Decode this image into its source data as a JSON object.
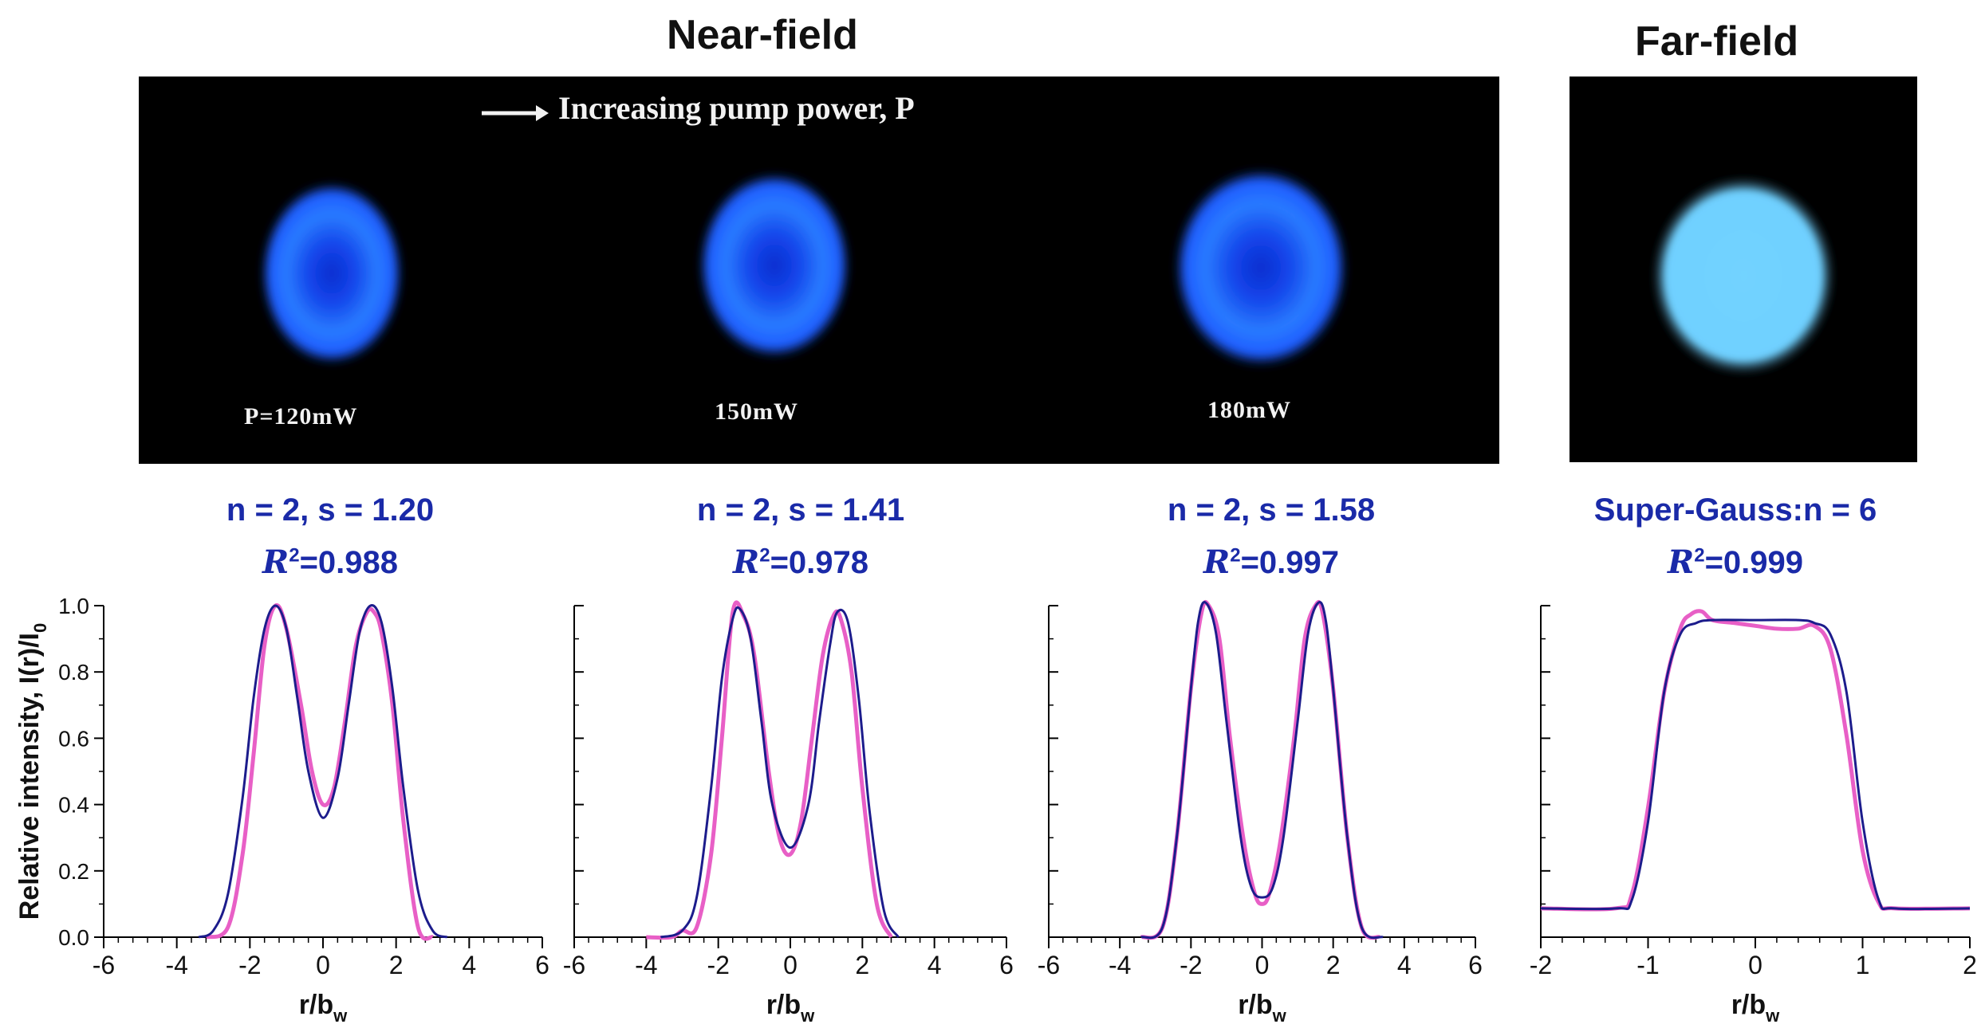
{
  "headers": {
    "near_field": "Near-field",
    "far_field": "Far-field"
  },
  "near_field_image": {
    "arrow_text": "Increasing pump power, P",
    "beam_labels": [
      "P=120mW",
      "150mW",
      "180mW"
    ],
    "beam_color": "#1e5cff"
  },
  "far_field_image": {
    "beam_color": "#6fd0ff"
  },
  "fit_labels": [
    {
      "line1": "n = 2, s = 1.20",
      "r2_symbol": "R",
      "r2_exp": "2",
      "r2_value": "=0.988"
    },
    {
      "line1": "n = 2, s = 1.41",
      "r2_symbol": "R",
      "r2_exp": "2",
      "r2_value": "=0.978"
    },
    {
      "line1": "n = 2, s = 1.58",
      "r2_symbol": "R",
      "r2_exp": "2",
      "r2_value": "=0.997"
    },
    {
      "line1": "Super-Gauss:n = 6",
      "r2_symbol": "R",
      "r2_exp": "2",
      "r2_value": "=0.999"
    }
  ],
  "colors": {
    "fit_label": "#1a2aa8",
    "measured": "#e85fc6",
    "fit": "#1c1c8c"
  },
  "chart_data": [
    {
      "type": "line",
      "xlim": [
        -6,
        6
      ],
      "ylim": [
        0,
        1.0
      ],
      "xticks": [
        "-6",
        "-4",
        "-2",
        "0",
        "2",
        "4",
        "6"
      ],
      "yticks": [
        "0.0",
        "0.2",
        "0.4",
        "0.6",
        "0.8",
        "1.0"
      ],
      "xlabel": "r/b",
      "xlabel_sub": "w",
      "ylabel": "Relative intensity, I(r)/I",
      "ylabel_sub": "0",
      "series": [
        {
          "role": "measured",
          "x": [
            -3.2,
            -2.6,
            -2.2,
            -1.9,
            -1.6,
            -1.3,
            -1.0,
            -0.6,
            -0.3,
            0,
            0.3,
            0.6,
            0.9,
            1.2,
            1.4,
            1.6,
            1.9,
            2.2,
            2.6,
            3.0
          ],
          "y": [
            0.0,
            0.03,
            0.25,
            0.55,
            0.88,
            1.0,
            0.93,
            0.7,
            0.5,
            0.4,
            0.45,
            0.65,
            0.88,
            0.98,
            0.98,
            0.92,
            0.7,
            0.35,
            0.03,
            0.0
          ]
        },
        {
          "role": "fit",
          "x": [
            -3.4,
            -3.0,
            -2.6,
            -2.2,
            -1.9,
            -1.6,
            -1.3,
            -1.0,
            -0.7,
            -0.4,
            0,
            0.4,
            0.7,
            1.0,
            1.3,
            1.6,
            1.9,
            2.2,
            2.6,
            3.0,
            3.4
          ],
          "y": [
            0.0,
            0.02,
            0.13,
            0.42,
            0.72,
            0.93,
            1.0,
            0.93,
            0.72,
            0.5,
            0.36,
            0.48,
            0.7,
            0.92,
            1.0,
            0.95,
            0.75,
            0.45,
            0.14,
            0.02,
            0.0
          ]
        }
      ]
    },
    {
      "type": "line",
      "xlim": [
        -6,
        6
      ],
      "ylim": [
        0,
        1.0
      ],
      "xticks": [
        "-6",
        "-4",
        "-2",
        "0",
        "2",
        "4",
        "6"
      ],
      "xlabel": "r/b",
      "xlabel_sub": "w",
      "series": [
        {
          "role": "measured",
          "x": [
            -4.0,
            -3.3,
            -3.0,
            -2.6,
            -2.2,
            -1.9,
            -1.6,
            -1.3,
            -1.0,
            -0.6,
            -0.3,
            0,
            0.3,
            0.6,
            0.9,
            1.2,
            1.4,
            1.7,
            2.0,
            2.4,
            2.8
          ],
          "y": [
            0.0,
            0.0,
            0.02,
            0.03,
            0.25,
            0.6,
            0.98,
            0.97,
            0.85,
            0.5,
            0.3,
            0.25,
            0.35,
            0.6,
            0.85,
            0.97,
            0.96,
            0.8,
            0.45,
            0.1,
            0.0
          ]
        },
        {
          "role": "fit",
          "x": [
            -3.6,
            -3.0,
            -2.6,
            -2.2,
            -1.9,
            -1.6,
            -1.4,
            -1.1,
            -0.8,
            -0.5,
            0,
            0.5,
            0.8,
            1.1,
            1.3,
            1.6,
            1.9,
            2.2,
            2.6,
            3.0
          ],
          "y": [
            0.0,
            0.02,
            0.12,
            0.45,
            0.78,
            0.96,
            0.99,
            0.9,
            0.65,
            0.4,
            0.27,
            0.4,
            0.65,
            0.88,
            0.98,
            0.95,
            0.72,
            0.38,
            0.08,
            0.0
          ]
        }
      ]
    },
    {
      "type": "line",
      "xlim": [
        -6,
        6
      ],
      "ylim": [
        0,
        1.0
      ],
      "xticks": [
        "-6",
        "-4",
        "-2",
        "0",
        "2",
        "4",
        "6"
      ],
      "xlabel": "r/b",
      "xlabel_sub": "w",
      "series": [
        {
          "role": "measured",
          "x": [
            -3.4,
            -2.8,
            -2.4,
            -2.0,
            -1.7,
            -1.5,
            -1.2,
            -0.9,
            -0.5,
            -0.2,
            0,
            0.2,
            0.5,
            0.9,
            1.2,
            1.5,
            1.7,
            2.0,
            2.4,
            2.8,
            3.3
          ],
          "y": [
            0.0,
            0.03,
            0.3,
            0.75,
            0.98,
            1.0,
            0.9,
            0.6,
            0.28,
            0.13,
            0.1,
            0.13,
            0.28,
            0.6,
            0.9,
            1.0,
            0.98,
            0.75,
            0.3,
            0.03,
            0.0
          ]
        },
        {
          "role": "fit",
          "x": [
            -3.4,
            -2.8,
            -2.4,
            -2.0,
            -1.8,
            -1.6,
            -1.3,
            -1.0,
            -0.6,
            -0.3,
            0,
            0.3,
            0.6,
            1.0,
            1.3,
            1.6,
            1.8,
            2.0,
            2.4,
            2.8,
            3.4
          ],
          "y": [
            0.0,
            0.03,
            0.3,
            0.75,
            0.95,
            1.01,
            0.92,
            0.65,
            0.3,
            0.15,
            0.12,
            0.15,
            0.3,
            0.65,
            0.92,
            1.01,
            0.95,
            0.75,
            0.3,
            0.03,
            0.0
          ]
        }
      ]
    },
    {
      "type": "line",
      "xlim": [
        -2,
        2
      ],
      "ylim": [
        -0.1,
        1.05
      ],
      "xticks": [
        "-2",
        "-1",
        "0",
        "1",
        "2"
      ],
      "xlabel": "r/b",
      "xlabel_sub": "w",
      "series": [
        {
          "role": "measured",
          "x": [
            -2.0,
            -1.3,
            -1.15,
            -1.0,
            -0.85,
            -0.7,
            -0.6,
            -0.5,
            -0.4,
            -0.2,
            0,
            0.2,
            0.4,
            0.55,
            0.7,
            0.85,
            1.0,
            1.15,
            1.3,
            2.0
          ],
          "y": [
            0.0,
            0.0,
            0.05,
            0.35,
            0.75,
            0.97,
            1.02,
            1.03,
            1.0,
            0.99,
            0.98,
            0.97,
            0.97,
            0.98,
            0.9,
            0.6,
            0.2,
            0.02,
            0.0,
            0.0
          ]
        },
        {
          "role": "fit",
          "x": [
            -2.0,
            -1.3,
            -1.15,
            -1.0,
            -0.85,
            -0.7,
            -0.55,
            -0.4,
            0,
            0.4,
            0.55,
            0.7,
            0.85,
            1.0,
            1.15,
            1.3,
            2.0
          ],
          "y": [
            0.0,
            0.0,
            0.03,
            0.3,
            0.75,
            0.95,
            0.99,
            1.0,
            1.0,
            1.0,
            0.99,
            0.95,
            0.75,
            0.3,
            0.03,
            0.0,
            0.0
          ]
        }
      ]
    }
  ]
}
